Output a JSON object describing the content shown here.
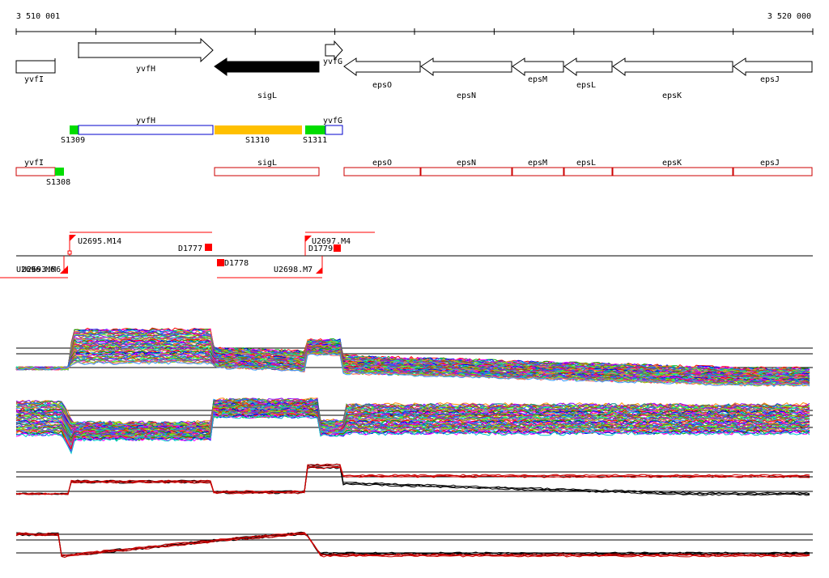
{
  "coords": {
    "start_label": "3 510 001",
    "end_label": "3 520 000",
    "start": 3510001,
    "end": 3520000
  },
  "colors": {
    "outline": "#000000",
    "feature_box": "#cc0000",
    "blue_box": "#0000cc",
    "green": "#00dd00",
    "orange": "#ffc000",
    "probe": "#ff0000"
  },
  "genes": [
    {
      "label": "yvfI",
      "strand": "fwd",
      "kind": "plain"
    },
    {
      "label": "yvfH",
      "strand": "fwd",
      "kind": "arrow"
    },
    {
      "label": "sigL",
      "strand": "rev",
      "kind": "filled"
    },
    {
      "label": "yvfG",
      "strand": "fwd",
      "kind": "arrow"
    },
    {
      "label": "epsO",
      "strand": "rev",
      "kind": "arrow"
    },
    {
      "label": "epsN",
      "strand": "rev",
      "kind": "arrow"
    },
    {
      "label": "epsM",
      "strand": "rev",
      "kind": "arrow"
    },
    {
      "label": "epsL",
      "strand": "rev",
      "kind": "arrow"
    },
    {
      "label": "epsK",
      "strand": "rev",
      "kind": "arrow"
    },
    {
      "label": "epsJ",
      "strand": "rev",
      "kind": "arrow"
    }
  ],
  "segments_top": [
    {
      "label": "S1309",
      "type": "green"
    },
    {
      "label": "yvfH",
      "type": "blue"
    },
    {
      "label": "S1310",
      "type": "orange"
    },
    {
      "label": "S1311",
      "type": "green"
    },
    {
      "label": "yvfG",
      "type": "blue"
    }
  ],
  "segments_bottom": [
    {
      "label": "yvfI",
      "type": "red"
    },
    {
      "label": "S1308",
      "type": "green"
    },
    {
      "label": "sigL",
      "type": "red"
    },
    {
      "label": "epsO",
      "type": "red"
    },
    {
      "label": "epsN",
      "type": "red"
    },
    {
      "label": "epsM",
      "type": "red"
    },
    {
      "label": "epsL",
      "type": "red"
    },
    {
      "label": "epsK",
      "type": "red"
    },
    {
      "label": "epsJ",
      "type": "red"
    }
  ],
  "transcripts": [
    {
      "label": "U2695.M14"
    },
    {
      "label": "D1777"
    },
    {
      "label": "D1778"
    },
    {
      "label": "U2697.M4"
    },
    {
      "label": "D1779"
    },
    {
      "label": "U2698.M7"
    },
    {
      "label": "U2696.M6"
    },
    {
      "label": "U2693.M6"
    }
  ],
  "tracks": [
    {
      "kind": "multi",
      "traces": 60
    },
    {
      "kind": "multi",
      "traces": 60
    },
    {
      "kind": "pair",
      "series_colors": [
        "#000000",
        "#cc0000"
      ]
    },
    {
      "kind": "pair",
      "series_colors": [
        "#000000",
        "#cc0000"
      ]
    }
  ]
}
